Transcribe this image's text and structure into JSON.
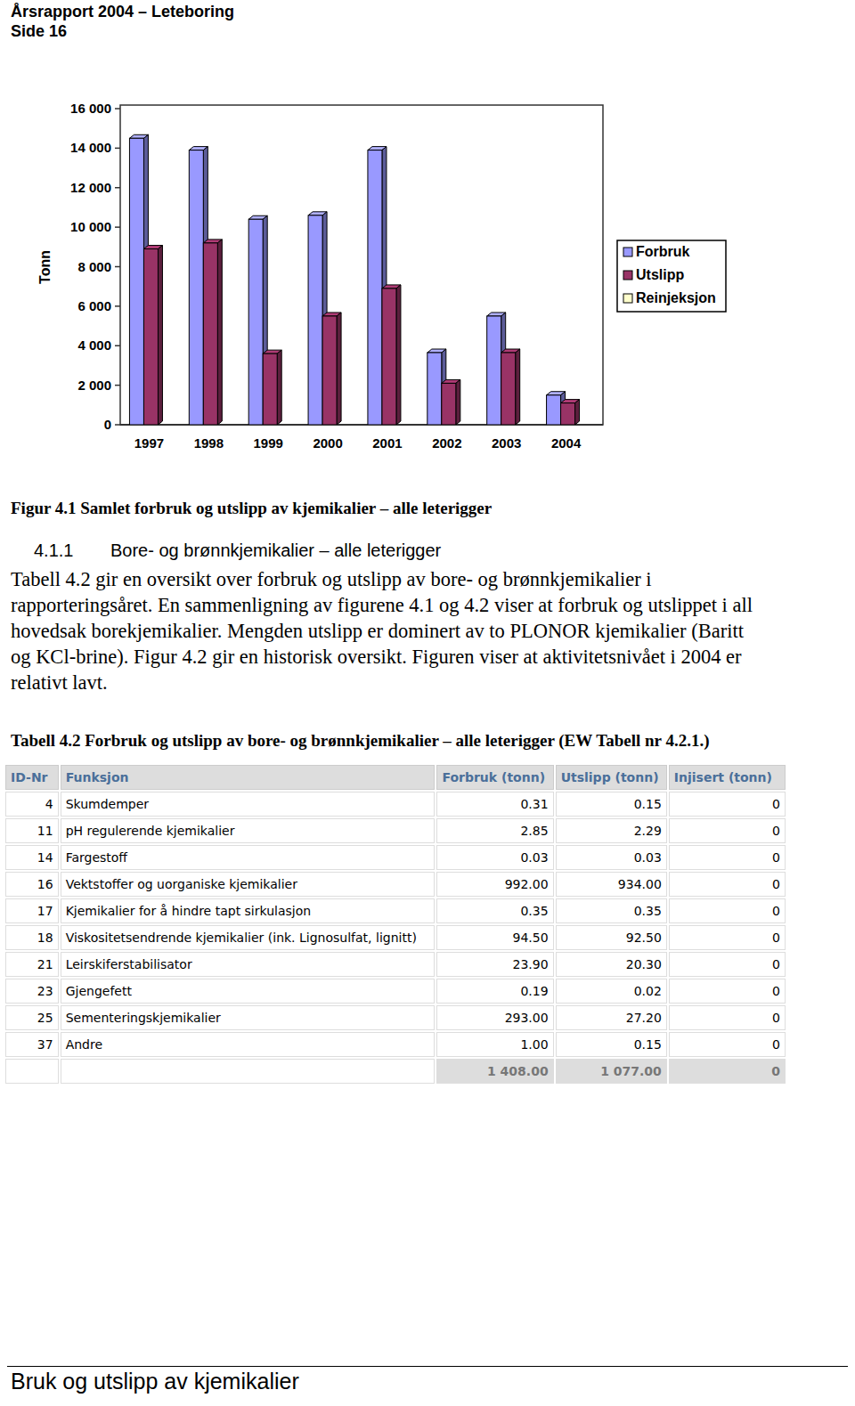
{
  "header": {
    "title": "Årsrapport 2004 – Leteboring",
    "page": "Side 16"
  },
  "chart_data": {
    "type": "bar",
    "y_label": "Tonn",
    "categories": [
      "1997",
      "1998",
      "1999",
      "2000",
      "2001",
      "2002",
      "2003",
      "2004"
    ],
    "series": [
      {
        "name": "Forbruk",
        "color": "#9999ff",
        "values": [
          14500,
          13900,
          10400,
          10600,
          13900,
          3650,
          5500,
          1500
        ]
      },
      {
        "name": "Utslipp",
        "color": "#993366",
        "values": [
          8900,
          9200,
          3600,
          5500,
          6900,
          2100,
          3650,
          1100
        ]
      },
      {
        "name": "Reinjeksjon",
        "color": "#ffffcc",
        "values": [
          0,
          0,
          0,
          0,
          0,
          0,
          0,
          0
        ]
      }
    ],
    "ylim": [
      0,
      16000
    ],
    "yticks": [
      0,
      {
        "value": 2000,
        "label": "2 000"
      },
      {
        "value": 4000,
        "label": "4 000"
      },
      {
        "value": 6000,
        "label": "6 000"
      },
      {
        "value": 8000,
        "label": "8 000"
      },
      {
        "value": 10000,
        "label": "10 000"
      },
      {
        "value": 12000,
        "label": "12 000"
      },
      {
        "value": 14000,
        "label": "14 000"
      },
      {
        "value": 16000,
        "label": "16 000"
      }
    ],
    "legend": "right",
    "grid": false
  },
  "figure_caption": "Figur 4.1 Samlet forbruk og utslipp av kjemikalier – alle leterigger",
  "section": {
    "number": "4.1.1",
    "title": "Bore- og brønnkjemikalier – alle leterigger"
  },
  "paragraph": [
    "Tabell 4.2 gir en oversikt over forbruk og utslipp av bore- og brønnkjemikalier i",
    "rapporteringsåret. En sammenligning av figurene 4.1 og 4.2 viser at forbruk og utslippet i all",
    "hovedsak borekjemikalier. Mengden utslipp er dominert av to PLONOR kjemikalier (Baritt",
    "og KCl-brine). Figur 4.2 gir en historisk oversikt.  Figuren viser at aktivitetsnivået i 2004 er",
    "relativt lavt."
  ],
  "table_caption": "Tabell 4.2 Forbruk og utslipp av bore- og brønnkjemikalier – alle leterigger (EW Tabell nr 4.2.1.)",
  "table": {
    "header": [
      "ID-Nr",
      "Funksjon",
      "Forbruk (tonn)",
      "Utslipp (tonn)",
      "Injisert (tonn)"
    ],
    "rows": [
      [
        "4",
        "Skumdemper",
        "0.31",
        "0.15",
        "0"
      ],
      [
        "11",
        "pH regulerende kjemikalier",
        "2.85",
        "2.29",
        "0"
      ],
      [
        "14",
        "Fargestoff",
        "0.03",
        "0.03",
        "0"
      ],
      [
        "16",
        "Vektstoffer og uorganiske kjemikalier",
        "992.00",
        "934.00",
        "0"
      ],
      [
        "17",
        "Kjemikalier for å hindre tapt sirkulasjon",
        "0.35",
        "0.35",
        "0"
      ],
      [
        "18",
        "Viskositetsendrende kjemikalier (ink. Lignosulfat, lignitt)",
        "94.50",
        "92.50",
        "0"
      ],
      [
        "21",
        "Leirskiferstabilisator",
        "23.90",
        "20.30",
        "0"
      ],
      [
        "23",
        "Gjengefett",
        "0.19",
        "0.02",
        "0"
      ],
      [
        "25",
        "Sementeringskjemikalier",
        "293.00",
        "27.20",
        "0"
      ],
      [
        "37",
        "Andre",
        "1.00",
        "0.15",
        "0"
      ]
    ],
    "total": [
      "1 408.00",
      "1 077.00",
      "0"
    ]
  },
  "footer": "Bruk og utslipp av kjemikalier"
}
